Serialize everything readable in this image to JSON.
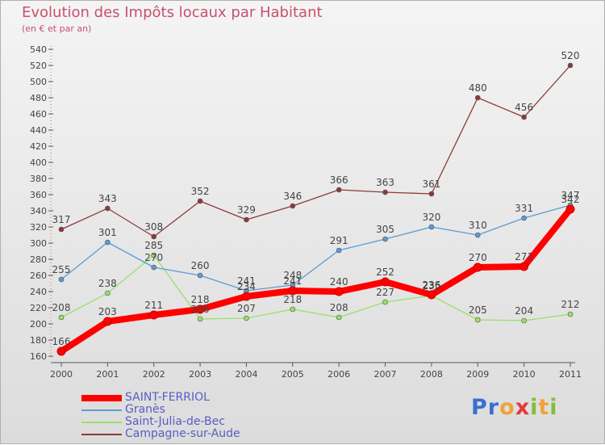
{
  "title": "Evolution des Impôts locaux par Habitant",
  "subtitle": "(en € et par an)",
  "logo": {
    "text": "Proxiti",
    "letter_colors": [
      "#3a6fd0",
      "#3a6fd0",
      "#f2a13a",
      "#e5383b",
      "#7fbf3a",
      "#f2a13a",
      "#7fbf3a"
    ]
  },
  "chart_data": {
    "type": "line",
    "title": "Evolution des Impôts locaux par Habitant",
    "subtitle": "(en € et par an)",
    "xlabel": "",
    "ylabel": "",
    "x": [
      "2000",
      "2001",
      "2002",
      "2003",
      "2004",
      "2005",
      "2006",
      "2007",
      "2008",
      "2009",
      "2010",
      "2011"
    ],
    "ylim": [
      160,
      540
    ],
    "ytick_step": 20,
    "grid": false,
    "legend_placement": "bottom-left",
    "series": [
      {
        "name": "SAINT-FERRIOL",
        "color": "#ff0000",
        "values": [
          166,
          203,
          211,
          218,
          234,
          241,
          240,
          252,
          236,
          270,
          271,
          342
        ]
      },
      {
        "name": "Granès",
        "color": "#5b9bd5",
        "values": [
          255,
          301,
          270,
          260,
          241,
          248,
          291,
          305,
          320,
          310,
          331,
          347
        ]
      },
      {
        "name": "Saint-Julia-de-Bec",
        "color": "#99e066",
        "values": [
          208,
          238,
          285,
          206,
          207,
          218,
          208,
          227,
          235,
          205,
          204,
          212
        ]
      },
      {
        "name": "Campagne-sur-Aude",
        "color": "#8b3a3a",
        "values": [
          317,
          343,
          308,
          352,
          329,
          346,
          366,
          363,
          361,
          480,
          456,
          520
        ]
      }
    ]
  }
}
